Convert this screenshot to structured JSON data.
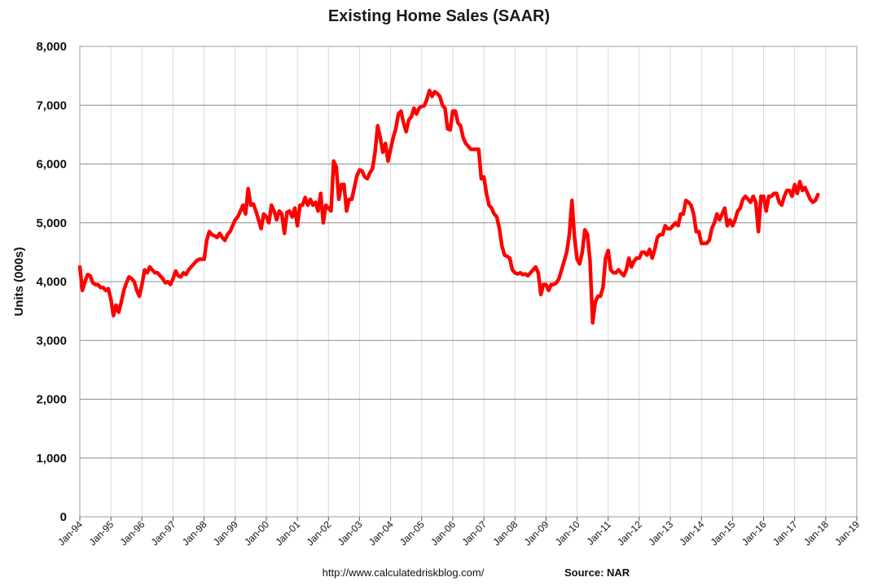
{
  "chart_data": {
    "type": "line",
    "title": "Existing Home Sales (SAAR)",
    "ylabel": "Units (000s)",
    "xlabel": "",
    "ylim": [
      0,
      8000
    ],
    "xlim": [
      "1994-01",
      "2019-01"
    ],
    "y_ticks": [
      "0",
      "1,000",
      "2,000",
      "3,000",
      "4,000",
      "5,000",
      "6,000",
      "7,000",
      "8,000"
    ],
    "x_ticks": [
      "Jan-94",
      "Jan-95",
      "Jan-96",
      "Jan-97",
      "Jan-98",
      "Jan-99",
      "Jan-00",
      "Jan-01",
      "Jan-02",
      "Jan-03",
      "Jan-04",
      "Jan-05",
      "Jan-06",
      "Jan-07",
      "Jan-08",
      "Jan-09",
      "Jan-10",
      "Jan-11",
      "Jan-12",
      "Jan-13",
      "Jan-14",
      "Jan-15",
      "Jan-16",
      "Jan-17",
      "Jan-18",
      "Jan-19"
    ],
    "grid": {
      "horizontal": true,
      "vertical": true
    },
    "legend": "none",
    "line_color": "#ff0000",
    "series": [
      {
        "points": [
          [
            "1994-01",
            4250
          ],
          [
            "1994-02",
            3850
          ],
          [
            "1994-03",
            4000
          ],
          [
            "1994-04",
            4120
          ],
          [
            "1994-05",
            4100
          ],
          [
            "1994-06",
            3980
          ],
          [
            "1994-07",
            3950
          ],
          [
            "1994-08",
            3950
          ],
          [
            "1994-09",
            3900
          ],
          [
            "1994-10",
            3900
          ],
          [
            "1994-11",
            3850
          ],
          [
            "1994-12",
            3880
          ],
          [
            "1995-01",
            3700
          ],
          [
            "1995-02",
            3420
          ],
          [
            "1995-03",
            3600
          ],
          [
            "1995-04",
            3480
          ],
          [
            "1995-05",
            3650
          ],
          [
            "1995-06",
            3850
          ],
          [
            "1995-07",
            3980
          ],
          [
            "1995-08",
            4080
          ],
          [
            "1995-09",
            4050
          ],
          [
            "1995-10",
            4000
          ],
          [
            "1995-11",
            3850
          ],
          [
            "1995-12",
            3750
          ],
          [
            "1996-01",
            3950
          ],
          [
            "1996-02",
            4200
          ],
          [
            "1996-03",
            4150
          ],
          [
            "1996-04",
            4250
          ],
          [
            "1996-05",
            4200
          ],
          [
            "1996-06",
            4150
          ],
          [
            "1996-07",
            4150
          ],
          [
            "1996-08",
            4100
          ],
          [
            "1996-09",
            4050
          ],
          [
            "1996-10",
            3980
          ],
          [
            "1996-11",
            4000
          ],
          [
            "1996-12",
            3950
          ],
          [
            "1997-01",
            4050
          ],
          [
            "1997-02",
            4180
          ],
          [
            "1997-03",
            4100
          ],
          [
            "1997-04",
            4080
          ],
          [
            "1997-05",
            4150
          ],
          [
            "1997-06",
            4120
          ],
          [
            "1997-07",
            4200
          ],
          [
            "1997-08",
            4250
          ],
          [
            "1997-09",
            4300
          ],
          [
            "1997-10",
            4350
          ],
          [
            "1997-11",
            4380
          ],
          [
            "1997-12",
            4380
          ],
          [
            "1998-01",
            4380
          ],
          [
            "1998-02",
            4700
          ],
          [
            "1998-03",
            4850
          ],
          [
            "1998-04",
            4800
          ],
          [
            "1998-05",
            4780
          ],
          [
            "1998-06",
            4750
          ],
          [
            "1998-07",
            4820
          ],
          [
            "1998-08",
            4750
          ],
          [
            "1998-09",
            4700
          ],
          [
            "1998-10",
            4800
          ],
          [
            "1998-11",
            4850
          ],
          [
            "1998-12",
            4950
          ],
          [
            "1999-01",
            5050
          ],
          [
            "1999-02",
            5100
          ],
          [
            "1999-03",
            5200
          ],
          [
            "1999-04",
            5300
          ],
          [
            "1999-05",
            5150
          ],
          [
            "1999-06",
            5580
          ],
          [
            "1999-07",
            5300
          ],
          [
            "1999-08",
            5320
          ],
          [
            "1999-09",
            5200
          ],
          [
            "1999-10",
            5050
          ],
          [
            "1999-11",
            4900
          ],
          [
            "1999-12",
            5150
          ],
          [
            "2000-01",
            5100
          ],
          [
            "2000-02",
            5000
          ],
          [
            "2000-03",
            5300
          ],
          [
            "2000-04",
            5200
          ],
          [
            "2000-05",
            5050
          ],
          [
            "2000-06",
            5200
          ],
          [
            "2000-07",
            5150
          ],
          [
            "2000-08",
            4820
          ],
          [
            "2000-09",
            5180
          ],
          [
            "2000-10",
            5200
          ],
          [
            "2000-11",
            5100
          ],
          [
            "2000-12",
            5250
          ],
          [
            "2001-01",
            4950
          ],
          [
            "2001-02",
            5300
          ],
          [
            "2001-03",
            5300
          ],
          [
            "2001-04",
            5430
          ],
          [
            "2001-05",
            5300
          ],
          [
            "2001-06",
            5400
          ],
          [
            "2001-07",
            5300
          ],
          [
            "2001-08",
            5350
          ],
          [
            "2001-09",
            5200
          ],
          [
            "2001-10",
            5500
          ],
          [
            "2001-11",
            5000
          ],
          [
            "2001-12",
            5300
          ],
          [
            "2002-01",
            5250
          ],
          [
            "2002-02",
            5200
          ],
          [
            "2002-03",
            6050
          ],
          [
            "2002-04",
            5950
          ],
          [
            "2002-05",
            5400
          ],
          [
            "2002-06",
            5650
          ],
          [
            "2002-07",
            5650
          ],
          [
            "2002-08",
            5200
          ],
          [
            "2002-09",
            5400
          ],
          [
            "2002-10",
            5400
          ],
          [
            "2002-11",
            5600
          ],
          [
            "2002-12",
            5800
          ],
          [
            "2003-01",
            5900
          ],
          [
            "2003-02",
            5880
          ],
          [
            "2003-03",
            5780
          ],
          [
            "2003-04",
            5750
          ],
          [
            "2003-05",
            5850
          ],
          [
            "2003-06",
            5920
          ],
          [
            "2003-07",
            6200
          ],
          [
            "2003-08",
            6650
          ],
          [
            "2003-09",
            6450
          ],
          [
            "2003-10",
            6200
          ],
          [
            "2003-11",
            6350
          ],
          [
            "2003-12",
            6050
          ],
          [
            "2004-01",
            6250
          ],
          [
            "2004-02",
            6450
          ],
          [
            "2004-03",
            6600
          ],
          [
            "2004-04",
            6850
          ],
          [
            "2004-05",
            6900
          ],
          [
            "2004-06",
            6700
          ],
          [
            "2004-07",
            6550
          ],
          [
            "2004-08",
            6750
          ],
          [
            "2004-09",
            6800
          ],
          [
            "2004-10",
            6950
          ],
          [
            "2004-11",
            6850
          ],
          [
            "2004-12",
            6950
          ],
          [
            "2005-01",
            6980
          ],
          [
            "2005-02",
            6990
          ],
          [
            "2005-03",
            7100
          ],
          [
            "2005-04",
            7250
          ],
          [
            "2005-05",
            7150
          ],
          [
            "2005-06",
            7230
          ],
          [
            "2005-07",
            7200
          ],
          [
            "2005-08",
            7150
          ],
          [
            "2005-09",
            7000
          ],
          [
            "2005-10",
            6950
          ],
          [
            "2005-11",
            6600
          ],
          [
            "2005-12",
            6580
          ],
          [
            "2006-01",
            6900
          ],
          [
            "2006-02",
            6900
          ],
          [
            "2006-03",
            6700
          ],
          [
            "2006-04",
            6650
          ],
          [
            "2006-05",
            6450
          ],
          [
            "2006-06",
            6350
          ],
          [
            "2006-07",
            6300
          ],
          [
            "2006-08",
            6250
          ],
          [
            "2006-09",
            6250
          ],
          [
            "2006-10",
            6250
          ],
          [
            "2006-11",
            6250
          ],
          [
            "2006-12",
            5750
          ],
          [
            "2007-01",
            5780
          ],
          [
            "2007-02",
            5500
          ],
          [
            "2007-03",
            5300
          ],
          [
            "2007-04",
            5250
          ],
          [
            "2007-05",
            5150
          ],
          [
            "2007-06",
            5100
          ],
          [
            "2007-07",
            4900
          ],
          [
            "2007-08",
            4600
          ],
          [
            "2007-09",
            4450
          ],
          [
            "2007-10",
            4430
          ],
          [
            "2007-11",
            4400
          ],
          [
            "2007-12",
            4200
          ],
          [
            "2008-01",
            4150
          ],
          [
            "2008-02",
            4130
          ],
          [
            "2008-03",
            4150
          ],
          [
            "2008-04",
            4120
          ],
          [
            "2008-05",
            4130
          ],
          [
            "2008-06",
            4100
          ],
          [
            "2008-07",
            4150
          ],
          [
            "2008-08",
            4200
          ],
          [
            "2008-09",
            4250
          ],
          [
            "2008-10",
            4150
          ],
          [
            "2008-11",
            3780
          ],
          [
            "2008-12",
            3950
          ],
          [
            "2009-01",
            3950
          ],
          [
            "2009-02",
            3850
          ],
          [
            "2009-03",
            3950
          ],
          [
            "2009-04",
            3950
          ],
          [
            "2009-05",
            3980
          ],
          [
            "2009-06",
            4050
          ],
          [
            "2009-07",
            4200
          ],
          [
            "2009-08",
            4350
          ],
          [
            "2009-09",
            4500
          ],
          [
            "2009-10",
            4800
          ],
          [
            "2009-11",
            5380
          ],
          [
            "2009-12",
            4750
          ],
          [
            "2010-01",
            4380
          ],
          [
            "2010-02",
            4300
          ],
          [
            "2010-03",
            4500
          ],
          [
            "2010-04",
            4880
          ],
          [
            "2010-05",
            4800
          ],
          [
            "2010-06",
            4350
          ],
          [
            "2010-07",
            3300
          ],
          [
            "2010-08",
            3650
          ],
          [
            "2010-09",
            3750
          ],
          [
            "2010-10",
            3750
          ],
          [
            "2010-11",
            3900
          ],
          [
            "2010-12",
            4400
          ],
          [
            "2011-01",
            4530
          ],
          [
            "2011-02",
            4200
          ],
          [
            "2011-03",
            4150
          ],
          [
            "2011-04",
            4150
          ],
          [
            "2011-05",
            4200
          ],
          [
            "2011-06",
            4150
          ],
          [
            "2011-07",
            4100
          ],
          [
            "2011-08",
            4200
          ],
          [
            "2011-09",
            4400
          ],
          [
            "2011-10",
            4250
          ],
          [
            "2011-11",
            4350
          ],
          [
            "2011-12",
            4400
          ],
          [
            "2012-01",
            4400
          ],
          [
            "2012-02",
            4500
          ],
          [
            "2012-03",
            4500
          ],
          [
            "2012-04",
            4450
          ],
          [
            "2012-05",
            4550
          ],
          [
            "2012-06",
            4400
          ],
          [
            "2012-07",
            4550
          ],
          [
            "2012-08",
            4750
          ],
          [
            "2012-09",
            4800
          ],
          [
            "2012-10",
            4800
          ],
          [
            "2012-11",
            4950
          ],
          [
            "2012-12",
            4900
          ],
          [
            "2013-01",
            4900
          ],
          [
            "2013-02",
            4950
          ],
          [
            "2013-03",
            5000
          ],
          [
            "2013-04",
            4950
          ],
          [
            "2013-05",
            5150
          ],
          [
            "2013-06",
            5150
          ],
          [
            "2013-07",
            5380
          ],
          [
            "2013-08",
            5350
          ],
          [
            "2013-09",
            5300
          ],
          [
            "2013-10",
            5150
          ],
          [
            "2013-11",
            4850
          ],
          [
            "2013-12",
            4850
          ],
          [
            "2014-01",
            4650
          ],
          [
            "2014-02",
            4650
          ],
          [
            "2014-03",
            4650
          ],
          [
            "2014-04",
            4700
          ],
          [
            "2014-05",
            4900
          ],
          [
            "2014-06",
            5000
          ],
          [
            "2014-07",
            5150
          ],
          [
            "2014-08",
            5050
          ],
          [
            "2014-09",
            5150
          ],
          [
            "2014-10",
            5250
          ],
          [
            "2014-11",
            4950
          ],
          [
            "2014-12",
            5050
          ],
          [
            "2015-01",
            4950
          ],
          [
            "2015-02",
            5050
          ],
          [
            "2015-03",
            5200
          ],
          [
            "2015-04",
            5250
          ],
          [
            "2015-05",
            5400
          ],
          [
            "2015-06",
            5450
          ],
          [
            "2015-07",
            5400
          ],
          [
            "2015-08",
            5350
          ],
          [
            "2015-09",
            5450
          ],
          [
            "2015-10",
            5350
          ],
          [
            "2015-11",
            4850
          ],
          [
            "2015-12",
            5450
          ],
          [
            "2016-01",
            5450
          ],
          [
            "2016-02",
            5200
          ],
          [
            "2016-03",
            5450
          ],
          [
            "2016-04",
            5450
          ],
          [
            "2016-05",
            5500
          ],
          [
            "2016-06",
            5500
          ],
          [
            "2016-07",
            5350
          ],
          [
            "2016-08",
            5300
          ],
          [
            "2016-09",
            5450
          ],
          [
            "2016-10",
            5550
          ],
          [
            "2016-11",
            5550
          ],
          [
            "2016-12",
            5450
          ],
          [
            "2017-01",
            5650
          ],
          [
            "2017-02",
            5500
          ],
          [
            "2017-03",
            5700
          ],
          [
            "2017-04",
            5550
          ],
          [
            "2017-05",
            5600
          ],
          [
            "2017-06",
            5500
          ],
          [
            "2017-07",
            5400
          ],
          [
            "2017-08",
            5350
          ],
          [
            "2017-09",
            5380
          ],
          [
            "2017-10",
            5480
          ]
        ]
      }
    ]
  },
  "footer": {
    "url": "http://www.calculatedriskblog.com/",
    "source": "Source: NAR"
  }
}
